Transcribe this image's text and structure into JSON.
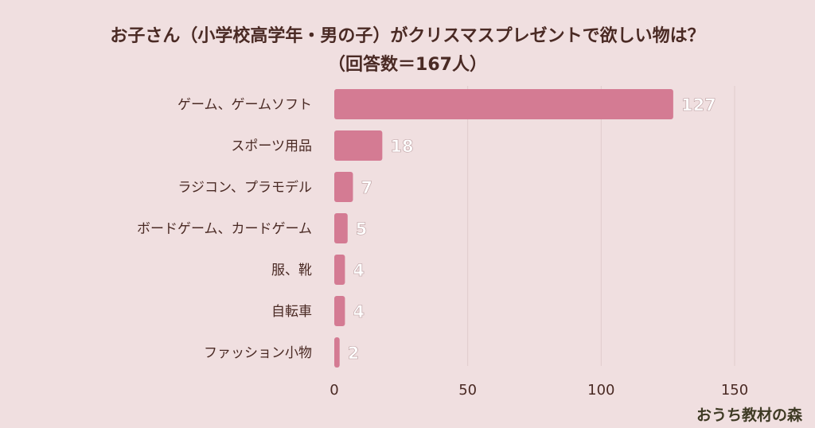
{
  "title_lines": [
    "お子さん（小学校高学年・男の子）がクリスマスプレゼントで欲しい物は？",
    "（回答数＝167人）"
  ],
  "watermark": "おうち教材の森",
  "colors": {
    "bar": "#d47b93",
    "grid": "#e0cccd",
    "background": "#f0dfe0",
    "text": "#4a2a24"
  },
  "chart_data": {
    "type": "bar",
    "orientation": "horizontal",
    "title": "お子さん（小学校高学年・男の子）がクリスマスプレゼントで欲しい物は？（回答数＝167人）",
    "categories": [
      "ゲーム、ゲームソフト",
      "スポーツ用品",
      "ラジコン、プラモデル",
      "ボードゲーム、カードゲーム",
      "服、靴",
      "自転車",
      "ファッション小物"
    ],
    "values": [
      127,
      18,
      7,
      5,
      4,
      4,
      2
    ],
    "xlim": [
      0,
      150
    ],
    "xticks": [
      0,
      50,
      100,
      150
    ],
    "xlabel": "",
    "ylabel": "",
    "grid": "vertical"
  }
}
